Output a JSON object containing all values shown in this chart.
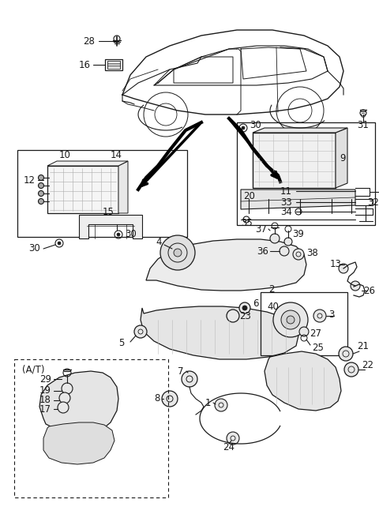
{
  "bg_color": "#ffffff",
  "line_color": "#1a1a1a",
  "fig_width": 4.8,
  "fig_height": 6.56,
  "dpi": 100
}
